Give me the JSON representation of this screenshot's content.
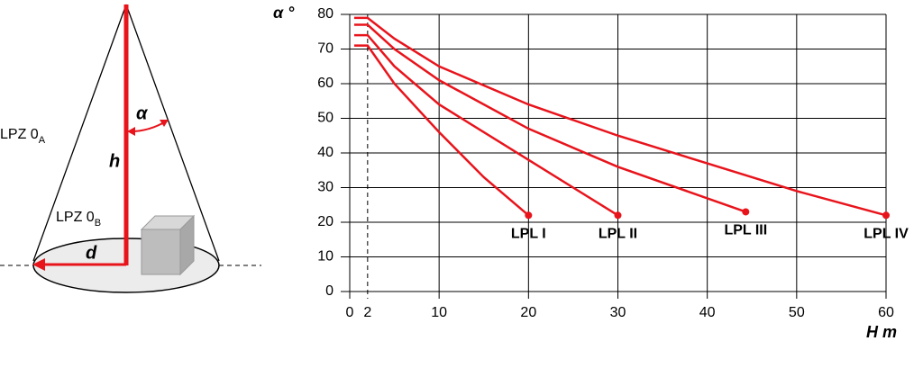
{
  "diagram": {
    "zone_a": {
      "text": "LPZ 0",
      "sub": "A"
    },
    "zone_b": {
      "text": "LPZ 0",
      "sub": "B"
    },
    "height": "h",
    "angle": "α",
    "distance": "d"
  },
  "chart_data": {
    "type": "line",
    "ylabel": "α °",
    "xlabel": "H m",
    "xlim": [
      0,
      60
    ],
    "xticks": [
      0,
      2,
      10,
      20,
      30,
      40,
      50,
      60
    ],
    "ylim": [
      0,
      80
    ],
    "yticks": [
      0,
      10,
      20,
      30,
      40,
      50,
      60,
      70,
      80
    ],
    "grid": true,
    "series": [
      {
        "name": "LPL I",
        "color": "#e8141c",
        "x": [
          0.5,
          2,
          5,
          10,
          15,
          20
        ],
        "values": [
          71,
          71,
          60,
          46,
          33,
          22
        ]
      },
      {
        "name": "LPL II",
        "color": "#e8141c",
        "x": [
          0.5,
          2,
          5,
          10,
          20,
          30
        ],
        "values": [
          74,
          74,
          65,
          54,
          38,
          22
        ]
      },
      {
        "name": "LPL III",
        "color": "#e8141c",
        "x": [
          0.5,
          2,
          5,
          10,
          20,
          30,
          44.3
        ],
        "values": [
          77,
          77,
          70,
          61,
          47,
          36,
          23
        ]
      },
      {
        "name": "LPL IV",
        "color": "#e8141c",
        "x": [
          0.5,
          2,
          5,
          10,
          20,
          30,
          40,
          50,
          60
        ],
        "values": [
          79,
          79,
          73,
          65,
          54,
          45,
          37,
          29,
          22
        ]
      }
    ]
  }
}
